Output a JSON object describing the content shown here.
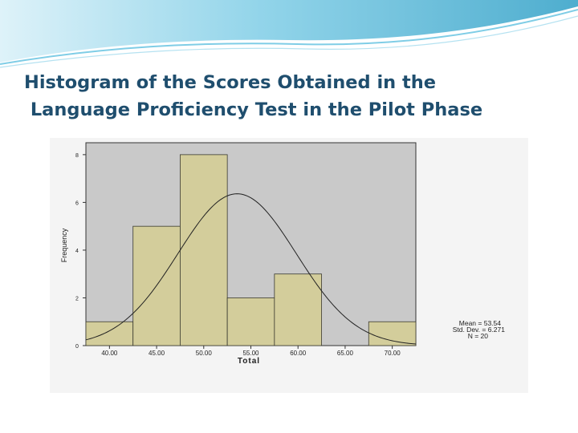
{
  "slide": {
    "title_line1": "Histogram of the Scores Obtained in the",
    "title_line2": " Language Proficiency Test in the Pilot Phase"
  },
  "colors": {
    "title": "#1f4e6e",
    "bar_fill": "#d3cd9b",
    "bar_stroke": "#3a3a30",
    "plot_background": "#c9c9c9",
    "figure_background": "#f4f4f4",
    "banner_light": "#d8f0f8",
    "banner_mid": "#7fcde6",
    "banner_dark": "#2f9fc6"
  },
  "chart_data": {
    "type": "bar",
    "subtype": "histogram",
    "title": "",
    "xlabel": "Total",
    "ylabel": "Frequency",
    "categories": [
      "40.00",
      "45.00",
      "50.00",
      "55.00",
      "60.00",
      "65.00",
      "70.00"
    ],
    "values": [
      1,
      5,
      8,
      2,
      3,
      0,
      1
    ],
    "bin_width": 5,
    "xlim": [
      37.5,
      72.5
    ],
    "ylim": [
      0,
      8.5
    ],
    "yticks": [
      "0",
      "2",
      "4",
      "6",
      "8"
    ],
    "xticks": [
      "40.00",
      "45.00",
      "50.00",
      "55.00",
      "60.00",
      "65.00",
      "70.00"
    ],
    "grid": false,
    "normal_curve": {
      "mean": 53.54,
      "std_dev": 6.271,
      "n": 20
    },
    "stats_box": {
      "mean_label": "Mean = 53.54",
      "std_label": "Std. Dev. = 6.271",
      "n_label": "N = 20",
      "position": "bottom-right"
    }
  }
}
